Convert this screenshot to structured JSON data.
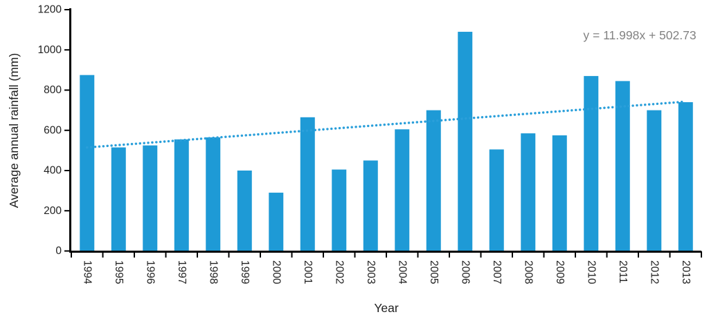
{
  "chart_data": {
    "type": "bar",
    "title": "",
    "xlabel": "Year",
    "ylabel": "Average annual rainfall (mm)",
    "categories": [
      "1994",
      "1995",
      "1996",
      "1997",
      "1998",
      "1999",
      "2000",
      "2001",
      "2002",
      "2003",
      "2004",
      "2005",
      "2006",
      "2007",
      "2008",
      "2009",
      "2010",
      "2011",
      "2012",
      "2013"
    ],
    "values": [
      875,
      515,
      525,
      555,
      565,
      400,
      290,
      665,
      405,
      450,
      605,
      700,
      1090,
      505,
      585,
      575,
      870,
      845,
      700,
      740
    ],
    "ylim": [
      0,
      1200
    ],
    "yticks": [
      0,
      200,
      400,
      600,
      800,
      1000,
      1200
    ],
    "grid": false,
    "legend_position": "none",
    "bar_color": "#1e9ad6",
    "axis_color": "#000000",
    "text_color": "#1f1f1f",
    "trendline": {
      "equation_label": "y = 11.998x + 502.73",
      "slope": 11.998,
      "intercept": 502.73,
      "style": "dotted",
      "color": "#2a9fda",
      "label_color": "#828282"
    }
  }
}
